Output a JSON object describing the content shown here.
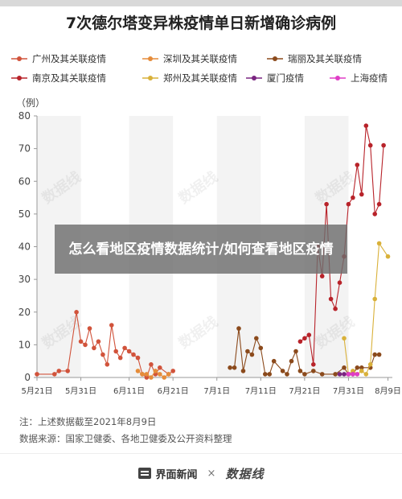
{
  "title": "7次德尔塔变异株疫情单日新增确诊病例",
  "banner": "怎么看地区疫情数据统计/如何查看地区疫情",
  "notes": {
    "line1": "注：上述数据截至2021年8月9日",
    "line2": "数据来源：国家卫健委、各地卫健委及公开资料整理"
  },
  "footer": {
    "brand_a": "界面新闻",
    "separator": "×",
    "brand_b": "数据线"
  },
  "watermark_text": "数据线",
  "chart_data": {
    "type": "line",
    "title": "7次德尔塔变异株疫情单日新增确诊病例",
    "ylabel": "（例）",
    "ylim": [
      0,
      80
    ],
    "yticks": [
      0,
      10,
      20,
      30,
      40,
      50,
      60,
      70,
      80
    ],
    "xlim": [
      "2021-05-21",
      "2021-08-10"
    ],
    "xticks": [
      "5月21日",
      "5月31日",
      "6月11日",
      "6月21日",
      "7月1日",
      "7月11日",
      "7月21日",
      "7月31日",
      "8月9日"
    ],
    "xtick_dates": [
      "2021-05-21",
      "2021-05-31",
      "2021-06-11",
      "2021-06-21",
      "2021-07-01",
      "2021-07-11",
      "2021-07-21",
      "2021-07-31",
      "2021-08-09"
    ],
    "grid": false,
    "legend_position": "top",
    "series": [
      {
        "name": "广州及其关联疫情",
        "color": "#d1533b",
        "points": [
          [
            "2021-05-21",
            1
          ],
          [
            "2021-05-25",
            1
          ],
          [
            "2021-05-26",
            2
          ],
          [
            "2021-05-28",
            2
          ],
          [
            "2021-05-30",
            20
          ],
          [
            "2021-05-31",
            11
          ],
          [
            "2021-06-01",
            10
          ],
          [
            "2021-06-02",
            15
          ],
          [
            "2021-06-03",
            9
          ],
          [
            "2021-06-04",
            11
          ],
          [
            "2021-06-05",
            7
          ],
          [
            "2021-06-06",
            4
          ],
          [
            "2021-06-07",
            16
          ],
          [
            "2021-06-08",
            8
          ],
          [
            "2021-06-09",
            6
          ],
          [
            "2021-06-10",
            9
          ],
          [
            "2021-06-11",
            8
          ],
          [
            "2021-06-12",
            7
          ],
          [
            "2021-06-13",
            6
          ],
          [
            "2021-06-14",
            1
          ],
          [
            "2021-06-15",
            0
          ],
          [
            "2021-06-16",
            4
          ],
          [
            "2021-06-17",
            1
          ],
          [
            "2021-06-18",
            3
          ],
          [
            "2021-06-20",
            1
          ],
          [
            "2021-06-21",
            2
          ]
        ]
      },
      {
        "name": "深圳及其关联疫情",
        "color": "#e58c3a",
        "points": [
          [
            "2021-06-13",
            2
          ],
          [
            "2021-06-14",
            1
          ],
          [
            "2021-06-15",
            1
          ],
          [
            "2021-06-16",
            0
          ],
          [
            "2021-06-17",
            2
          ],
          [
            "2021-06-18",
            1
          ],
          [
            "2021-06-19",
            0
          ],
          [
            "2021-06-20",
            1
          ]
        ]
      },
      {
        "name": "瑞丽及其关联疫情",
        "color": "#8b4a1c",
        "points": [
          [
            "2021-07-04",
            3
          ],
          [
            "2021-07-05",
            3
          ],
          [
            "2021-07-06",
            15
          ],
          [
            "2021-07-07",
            2
          ],
          [
            "2021-07-08",
            8
          ],
          [
            "2021-07-09",
            7
          ],
          [
            "2021-07-10",
            12
          ],
          [
            "2021-07-11",
            9
          ],
          [
            "2021-07-12",
            1
          ],
          [
            "2021-07-13",
            1
          ],
          [
            "2021-07-14",
            5
          ],
          [
            "2021-07-16",
            2
          ],
          [
            "2021-07-17",
            1
          ],
          [
            "2021-07-18",
            5
          ],
          [
            "2021-07-19",
            8
          ],
          [
            "2021-07-20",
            2
          ],
          [
            "2021-07-21",
            1
          ],
          [
            "2021-07-23",
            2
          ],
          [
            "2021-07-25",
            1
          ],
          [
            "2021-07-28",
            1
          ],
          [
            "2021-07-30",
            3
          ],
          [
            "2021-07-31",
            1
          ],
          [
            "2021-08-01",
            1
          ],
          [
            "2021-08-02",
            3
          ],
          [
            "2021-08-03",
            3
          ],
          [
            "2021-08-05",
            3
          ],
          [
            "2021-08-06",
            7
          ],
          [
            "2021-08-07",
            7
          ]
        ]
      },
      {
        "name": "南京及其关联疫情",
        "color": "#b8232a",
        "points": [
          [
            "2021-07-20",
            11
          ],
          [
            "2021-07-21",
            12
          ],
          [
            "2021-07-22",
            13
          ],
          [
            "2021-07-23",
            4
          ],
          [
            "2021-07-24",
            40
          ],
          [
            "2021-07-25",
            31
          ],
          [
            "2021-07-26",
            53
          ],
          [
            "2021-07-27",
            24
          ],
          [
            "2021-07-28",
            21
          ],
          [
            "2021-07-29",
            29
          ],
          [
            "2021-07-30",
            37
          ],
          [
            "2021-07-31",
            53
          ],
          [
            "2021-08-01",
            55
          ],
          [
            "2021-08-02",
            65
          ],
          [
            "2021-08-03",
            56
          ],
          [
            "2021-08-04",
            77
          ],
          [
            "2021-08-05",
            71
          ],
          [
            "2021-08-06",
            50
          ],
          [
            "2021-08-07",
            53
          ],
          [
            "2021-08-08",
            71
          ]
        ]
      },
      {
        "name": "郑州及其关联疫情",
        "color": "#d9b13a",
        "points": [
          [
            "2021-07-30",
            12
          ],
          [
            "2021-07-31",
            1
          ],
          [
            "2021-08-01",
            2
          ],
          [
            "2021-08-02",
            1
          ],
          [
            "2021-08-03",
            2
          ],
          [
            "2021-08-04",
            1
          ],
          [
            "2021-08-05",
            4
          ],
          [
            "2021-08-06",
            24
          ],
          [
            "2021-08-07",
            41
          ],
          [
            "2021-08-09",
            37
          ]
        ]
      },
      {
        "name": "厦门疫情",
        "color": "#7a2580",
        "points": [
          [
            "2021-07-29",
            1
          ],
          [
            "2021-07-30",
            1
          ],
          [
            "2021-07-31",
            1
          ],
          [
            "2021-08-01",
            1
          ]
        ]
      },
      {
        "name": "上海疫情",
        "color": "#e03dc6",
        "points": [
          [
            "2021-07-31",
            1
          ],
          [
            "2021-08-01",
            1
          ],
          [
            "2021-08-02",
            1
          ]
        ]
      }
    ]
  }
}
